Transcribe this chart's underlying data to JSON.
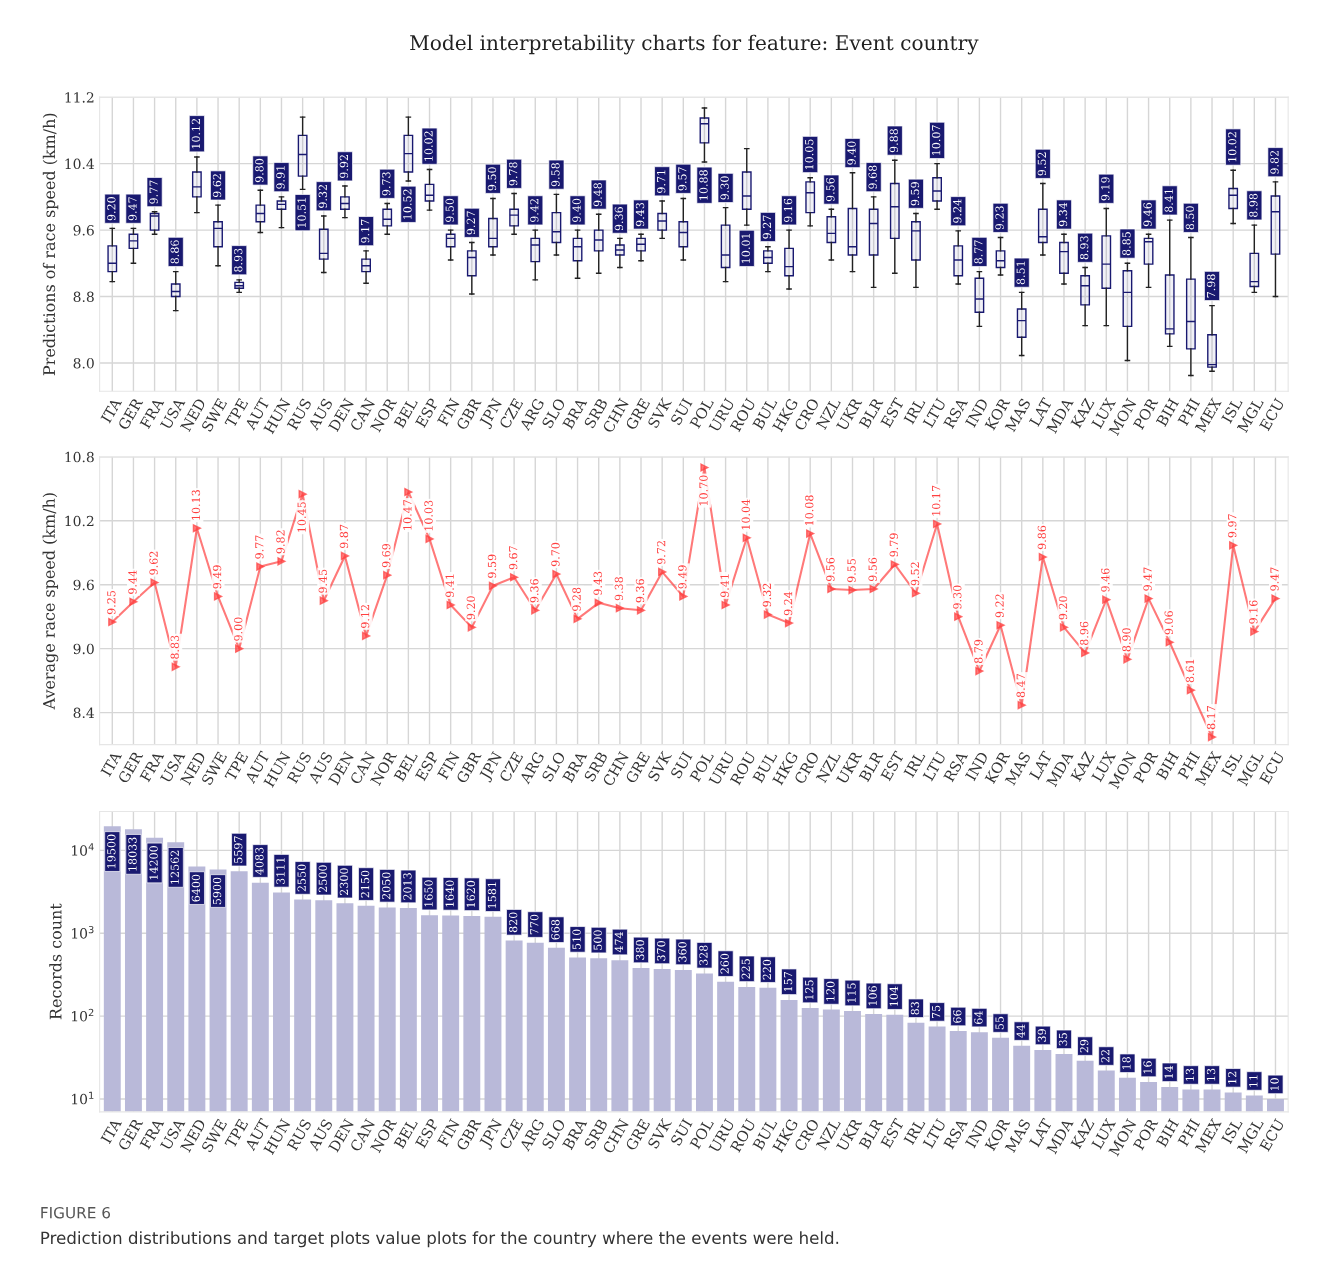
{
  "chart_data": [
    {
      "type": "box",
      "title": "Model interpretability charts for feature: Event country",
      "ylabel": "Predictions of race speed (km/h)",
      "color": "#191970",
      "categories": [
        "ITA",
        "GER",
        "FRA",
        "USA",
        "NED",
        "SWE",
        "TPE",
        "AUT",
        "HUN",
        "RUS",
        "AUS",
        "DEN",
        "CAN",
        "NOR",
        "BEL",
        "ESP",
        "FIN",
        "GBR",
        "JPN",
        "CZE",
        "ARG",
        "SLO",
        "BRA",
        "SRB",
        "CHN",
        "GRE",
        "SVK",
        "SUI",
        "POL",
        "URU",
        "ROU",
        "BUL",
        "HKG",
        "CRO",
        "NZL",
        "UKR",
        "BLR",
        "EST",
        "IRL",
        "LTU",
        "RSA",
        "IND",
        "KOR",
        "MAS",
        "LAT",
        "MDA",
        "KAZ",
        "LUX",
        "MON",
        "POR",
        "BIH",
        "PHI",
        "MEX",
        "ISL",
        "MGL",
        "ECU"
      ],
      "boxes": [
        {
          "low": 8.98,
          "q1": 9.1,
          "median": 9.2,
          "q3": 9.41,
          "high": 9.62
        },
        {
          "low": 9.2,
          "q1": 9.38,
          "median": 9.47,
          "q3": 9.55,
          "high": 9.62
        },
        {
          "low": 9.55,
          "q1": 9.6,
          "median": 9.77,
          "q3": 9.8,
          "high": 9.82
        },
        {
          "low": 8.63,
          "q1": 8.8,
          "median": 8.86,
          "q3": 8.95,
          "high": 9.1
        },
        {
          "low": 9.81,
          "q1": 10.0,
          "median": 10.12,
          "q3": 10.3,
          "high": 10.48
        },
        {
          "low": 9.17,
          "q1": 9.4,
          "median": 9.62,
          "q3": 9.7,
          "high": 9.9
        },
        {
          "low": 8.85,
          "q1": 8.9,
          "median": 8.93,
          "q3": 8.97,
          "high": 9.0
        },
        {
          "low": 9.57,
          "q1": 9.7,
          "median": 9.8,
          "q3": 9.9,
          "high": 10.08
        },
        {
          "low": 9.63,
          "q1": 9.85,
          "median": 9.91,
          "q3": 9.95,
          "high": 10.0
        },
        {
          "low": 10.09,
          "q1": 10.25,
          "median": 10.51,
          "q3": 10.74,
          "high": 10.96
        },
        {
          "low": 9.09,
          "q1": 9.25,
          "median": 9.32,
          "q3": 9.61,
          "high": 9.77
        },
        {
          "low": 9.75,
          "q1": 9.85,
          "median": 9.92,
          "q3": 10.0,
          "high": 10.13
        },
        {
          "low": 8.96,
          "q1": 9.1,
          "median": 9.17,
          "q3": 9.25,
          "high": 9.35
        },
        {
          "low": 9.55,
          "q1": 9.65,
          "median": 9.73,
          "q3": 9.85,
          "high": 9.92
        },
        {
          "low": 10.19,
          "q1": 10.3,
          "median": 10.52,
          "q3": 10.74,
          "high": 10.96
        },
        {
          "low": 9.84,
          "q1": 9.95,
          "median": 10.02,
          "q3": 10.15,
          "high": 10.33
        },
        {
          "low": 9.24,
          "q1": 9.4,
          "median": 9.5,
          "q3": 9.55,
          "high": 9.6
        },
        {
          "low": 8.83,
          "q1": 9.05,
          "median": 9.27,
          "q3": 9.35,
          "high": 9.45
        },
        {
          "low": 9.3,
          "q1": 9.4,
          "median": 9.5,
          "q3": 9.74,
          "high": 9.98
        },
        {
          "low": 9.55,
          "q1": 9.65,
          "median": 9.78,
          "q3": 9.85,
          "high": 10.04
        },
        {
          "low": 9.0,
          "q1": 9.22,
          "median": 9.42,
          "q3": 9.5,
          "high": 9.6
        },
        {
          "low": 9.3,
          "q1": 9.45,
          "median": 9.58,
          "q3": 9.81,
          "high": 10.03
        },
        {
          "low": 9.02,
          "q1": 9.23,
          "median": 9.4,
          "q3": 9.5,
          "high": 9.6
        },
        {
          "low": 9.08,
          "q1": 9.35,
          "median": 9.48,
          "q3": 9.6,
          "high": 9.79
        },
        {
          "low": 9.15,
          "q1": 9.3,
          "median": 9.36,
          "q3": 9.42,
          "high": 9.5
        },
        {
          "low": 9.23,
          "q1": 9.35,
          "median": 9.43,
          "q3": 9.5,
          "high": 9.55
        },
        {
          "low": 9.5,
          "q1": 9.6,
          "median": 9.71,
          "q3": 9.8,
          "high": 9.95
        },
        {
          "low": 9.24,
          "q1": 9.4,
          "median": 9.57,
          "q3": 9.7,
          "high": 9.98
        },
        {
          "low": 10.42,
          "q1": 10.65,
          "median": 10.88,
          "q3": 10.95,
          "high": 11.07
        },
        {
          "low": 8.98,
          "q1": 9.15,
          "median": 9.3,
          "q3": 9.66,
          "high": 9.87
        },
        {
          "low": 9.66,
          "q1": 9.85,
          "median": 10.01,
          "q3": 10.3,
          "high": 10.58
        },
        {
          "low": 9.1,
          "q1": 9.2,
          "median": 9.27,
          "q3": 9.35,
          "high": 9.4
        },
        {
          "low": 8.89,
          "q1": 9.05,
          "median": 9.16,
          "q3": 9.38,
          "high": 9.6
        },
        {
          "low": 9.65,
          "q1": 9.81,
          "median": 10.05,
          "q3": 10.18,
          "high": 10.23
        },
        {
          "low": 9.24,
          "q1": 9.45,
          "median": 9.56,
          "q3": 9.76,
          "high": 9.85
        },
        {
          "low": 9.1,
          "q1": 9.3,
          "median": 9.4,
          "q3": 9.86,
          "high": 10.29
        },
        {
          "low": 8.91,
          "q1": 9.3,
          "median": 9.68,
          "q3": 9.85,
          "high": 10.0
        },
        {
          "low": 9.08,
          "q1": 9.5,
          "median": 9.88,
          "q3": 10.16,
          "high": 10.44
        },
        {
          "low": 8.91,
          "q1": 9.24,
          "median": 9.59,
          "q3": 9.7,
          "high": 9.8
        },
        {
          "low": 9.85,
          "q1": 9.95,
          "median": 10.07,
          "q3": 10.23,
          "high": 10.4
        },
        {
          "low": 8.95,
          "q1": 9.05,
          "median": 9.24,
          "q3": 9.41,
          "high": 9.59
        },
        {
          "low": 8.44,
          "q1": 8.61,
          "median": 8.77,
          "q3": 9.02,
          "high": 9.1
        },
        {
          "low": 9.06,
          "q1": 9.15,
          "median": 9.23,
          "q3": 9.35,
          "high": 9.51
        },
        {
          "low": 8.09,
          "q1": 8.31,
          "median": 8.51,
          "q3": 8.65,
          "high": 8.85
        },
        {
          "low": 9.3,
          "q1": 9.45,
          "median": 9.52,
          "q3": 9.85,
          "high": 10.16
        },
        {
          "low": 8.95,
          "q1": 9.08,
          "median": 9.34,
          "q3": 9.45,
          "high": 9.55
        },
        {
          "low": 8.45,
          "q1": 8.7,
          "median": 8.93,
          "q3": 9.05,
          "high": 9.15
        },
        {
          "low": 8.45,
          "q1": 8.9,
          "median": 9.19,
          "q3": 9.53,
          "high": 9.86
        },
        {
          "low": 8.03,
          "q1": 8.44,
          "median": 8.85,
          "q3": 9.11,
          "high": 9.2
        },
        {
          "low": 8.91,
          "q1": 9.19,
          "median": 9.46,
          "q3": 9.5,
          "high": 9.55
        },
        {
          "low": 8.2,
          "q1": 8.35,
          "median": 8.41,
          "q3": 9.06,
          "high": 9.72
        },
        {
          "low": 7.85,
          "q1": 8.17,
          "median": 8.5,
          "q3": 9.01,
          "high": 9.51
        },
        {
          "low": 7.9,
          "q1": 7.95,
          "median": 7.98,
          "q3": 8.34,
          "high": 8.69
        },
        {
          "low": 9.68,
          "q1": 9.86,
          "median": 10.02,
          "q3": 10.1,
          "high": 10.32
        },
        {
          "low": 8.85,
          "q1": 8.92,
          "median": 8.98,
          "q3": 9.32,
          "high": 9.66
        },
        {
          "low": 8.8,
          "q1": 9.31,
          "median": 9.82,
          "q3": 10.01,
          "high": 10.18
        }
      ],
      "value_labels": [
        "9.20",
        "9.47",
        "9.77",
        "8.86",
        "10.12",
        "9.62",
        "8.93",
        "9.80",
        "9.91",
        "10.51",
        "9.32",
        "9.92",
        "9.17",
        "9.73",
        "10.52",
        "10.02",
        "9.50",
        "9.27",
        "9.50",
        "9.78",
        "9.42",
        "9.58",
        "9.40",
        "9.48",
        "9.36",
        "9.43",
        "9.71",
        "9.57",
        "10.88",
        "9.30",
        "10.01",
        "9.27",
        "9.16",
        "10.05",
        "9.56",
        "9.40",
        "9.68",
        "9.88",
        "9.59",
        "10.07",
        "9.24",
        "8.77",
        "9.23",
        "8.51",
        "9.52",
        "9.34",
        "8.93",
        "9.19",
        "8.85",
        "9.46",
        "8.41",
        "8.50",
        "7.98",
        "10.02",
        "8.98",
        "9.82"
      ],
      "ylim": [
        7.66,
        11.2
      ],
      "yticks": [
        {
          "value": 8,
          "label": "8.0"
        },
        8.8,
        9.6,
        10.4,
        11.2
      ],
      "grid": true
    },
    {
      "type": "line",
      "ylabel": "Average race speed (km/h)",
      "marker": "triangle",
      "categories": [
        "ITA",
        "GER",
        "FRA",
        "USA",
        "NED",
        "SWE",
        "TPE",
        "AUT",
        "HUN",
        "RUS",
        "AUS",
        "DEN",
        "CAN",
        "NOR",
        "BEL",
        "ESP",
        "FIN",
        "GBR",
        "JPN",
        "CZE",
        "ARG",
        "SLO",
        "BRA",
        "SRB",
        "CHN",
        "GRE",
        "SVK",
        "SUI",
        "POL",
        "URU",
        "ROU",
        "BUL",
        "HKG",
        "CRO",
        "NZL",
        "UKR",
        "BLR",
        "EST",
        "IRL",
        "LTU",
        "RSA",
        "IND",
        "KOR",
        "MAS",
        "LAT",
        "MDA",
        "KAZ",
        "LUX",
        "MON",
        "POR",
        "BIH",
        "PHI",
        "MEX",
        "ISL",
        "MGL",
        "ECU"
      ],
      "series": [
        {
          "color": "#ff4040",
          "values": [
            9.25,
            9.44,
            9.62,
            8.83,
            10.13,
            9.49,
            9.0,
            9.77,
            9.82,
            10.45,
            9.45,
            9.87,
            9.12,
            9.69,
            10.47,
            10.03,
            9.41,
            9.2,
            9.59,
            9.67,
            9.36,
            9.7,
            9.28,
            9.43,
            9.38,
            9.36,
            9.72,
            9.49,
            10.7,
            9.41,
            10.04,
            9.32,
            9.24,
            10.08,
            9.56,
            9.55,
            9.56,
            9.79,
            9.52,
            10.17,
            9.3,
            8.79,
            9.22,
            8.47,
            9.86,
            9.2,
            8.96,
            9.46,
            8.9,
            9.47,
            9.06,
            8.61,
            8.17,
            9.97,
            9.16,
            9.47
          ],
          "value_labels": [
            "9.25",
            "9.44",
            "9.62",
            "8.83",
            "10.13",
            "9.49",
            "9.00",
            "9.77",
            "9.82",
            "10.45",
            "9.45",
            "9.87",
            "9.12",
            "9.69",
            "10.47",
            "10.03",
            "9.41",
            "9.20",
            "9.59",
            "9.67",
            "9.36",
            "9.70",
            "9.28",
            "9.43",
            "9.38",
            "9.36",
            "9.72",
            "9.49",
            "10.70",
            "9.41",
            "10.04",
            "9.32",
            "9.24",
            "10.08",
            "9.56",
            "9.55",
            "9.56",
            "9.79",
            "9.52",
            "10.17",
            "9.30",
            "8.79",
            "9.22",
            "8.47",
            "9.86",
            "9.20",
            "8.96",
            "9.46",
            "8.90",
            "9.47",
            "9.06",
            "8.61",
            "8.17",
            "9.97",
            "9.16",
            "9.47"
          ]
        }
      ],
      "ylim": [
        8.1,
        10.8
      ],
      "yticks": [
        8.4,
        {
          "value": 9,
          "label": "9.0"
        },
        9.6,
        10.2,
        10.8
      ],
      "grid": true
    },
    {
      "type": "bar",
      "ylabel": "Records count",
      "log": true,
      "color": "#b9b9d9",
      "categories": [
        "ITA",
        "GER",
        "FRA",
        "USA",
        "NED",
        "SWE",
        "TPE",
        "AUT",
        "HUN",
        "RUS",
        "AUS",
        "DEN",
        "CAN",
        "NOR",
        "BEL",
        "ESP",
        "FIN",
        "GBR",
        "JPN",
        "CZE",
        "ARG",
        "SLO",
        "BRA",
        "SRB",
        "CHN",
        "GRE",
        "SVK",
        "SUI",
        "POL",
        "URU",
        "ROU",
        "BUL",
        "HKG",
        "CRO",
        "NZL",
        "UKR",
        "BLR",
        "EST",
        "IRL",
        "LTU",
        "RSA",
        "IND",
        "KOR",
        "MAS",
        "LAT",
        "MDA",
        "KAZ",
        "LUX",
        "MON",
        "POR",
        "BIH",
        "PHI",
        "MEX",
        "ISL",
        "MGL",
        "ECU"
      ],
      "values": [
        19500,
        18033,
        14200,
        12562,
        6400,
        5900,
        5597,
        4083,
        3111,
        2550,
        2500,
        2300,
        2150,
        2050,
        2013,
        1650,
        1640,
        1620,
        1581,
        820,
        770,
        668,
        510,
        500,
        474,
        380,
        370,
        360,
        328,
        260,
        225,
        220,
        157,
        125,
        120,
        115,
        106,
        104,
        83,
        75,
        66,
        64,
        55,
        44,
        39,
        35,
        29,
        22,
        18,
        16,
        14,
        13,
        13,
        12,
        11,
        10
      ],
      "data_labels": true,
      "ylim": [
        7,
        29500
      ],
      "yticks": [
        {
          "value": 10,
          "label": "10$^{1}$"
        },
        {
          "value": 100,
          "label": "10$^{2}$"
        },
        {
          "value": 1000,
          "label": "10$^{3}$"
        },
        {
          "value": 10000,
          "label": "10$^{4}$"
        }
      ],
      "grid": true,
      "annotations": [
        "FIGURE 6",
        "Prediction distributions and target plots value plots for the country where the events were held."
      ]
    }
  ]
}
